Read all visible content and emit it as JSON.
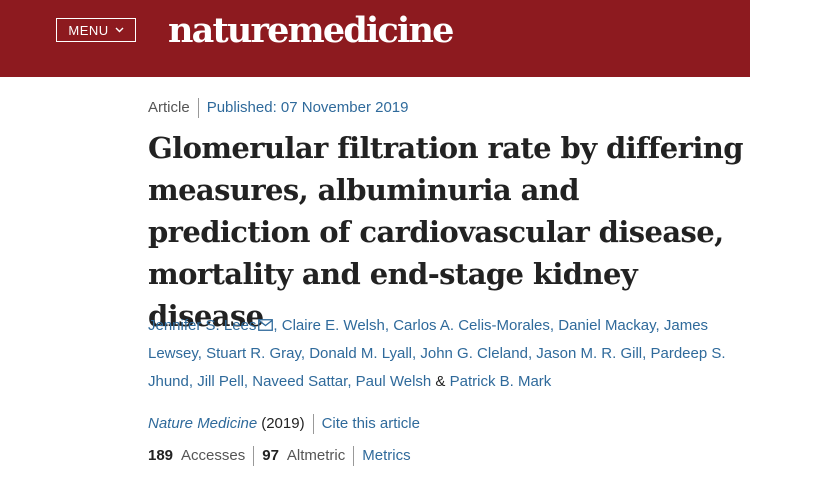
{
  "header": {
    "menu_label": "MENU",
    "logo_text": "naturemedicine",
    "background_color": "#8d1a1f"
  },
  "article": {
    "type": "Article",
    "published": "Published: 07 November 2019",
    "title": "Glomerular filtration rate by differing measures, albuminuria and prediction of cardiovascular disease, mortality and end-stage kidney disease",
    "authors": [
      "Jennifer S. Lees",
      "Claire E. Welsh",
      "Carlos A. Celis-Morales",
      "Daniel Mackay",
      "James Lewsey",
      "Stuart R. Gray",
      "Donald M. Lyall",
      "John G. Cleland",
      "Jason M. R. Gill",
      "Pardeep S. Jhund",
      "Jill Pell",
      "Naveed Sattar",
      "Paul Welsh",
      "Patrick B. Mark"
    ],
    "separator": ",",
    "last_separator": "&",
    "journal": "Nature Medicine",
    "year": "(2019)",
    "cite_label": "Cite this article",
    "accesses_count": "189",
    "accesses_label": "Accesses",
    "altmetric_count": "97",
    "altmetric_label": "Altmetric",
    "metrics_label": "Metrics",
    "link_color": "#2f6a9b"
  }
}
